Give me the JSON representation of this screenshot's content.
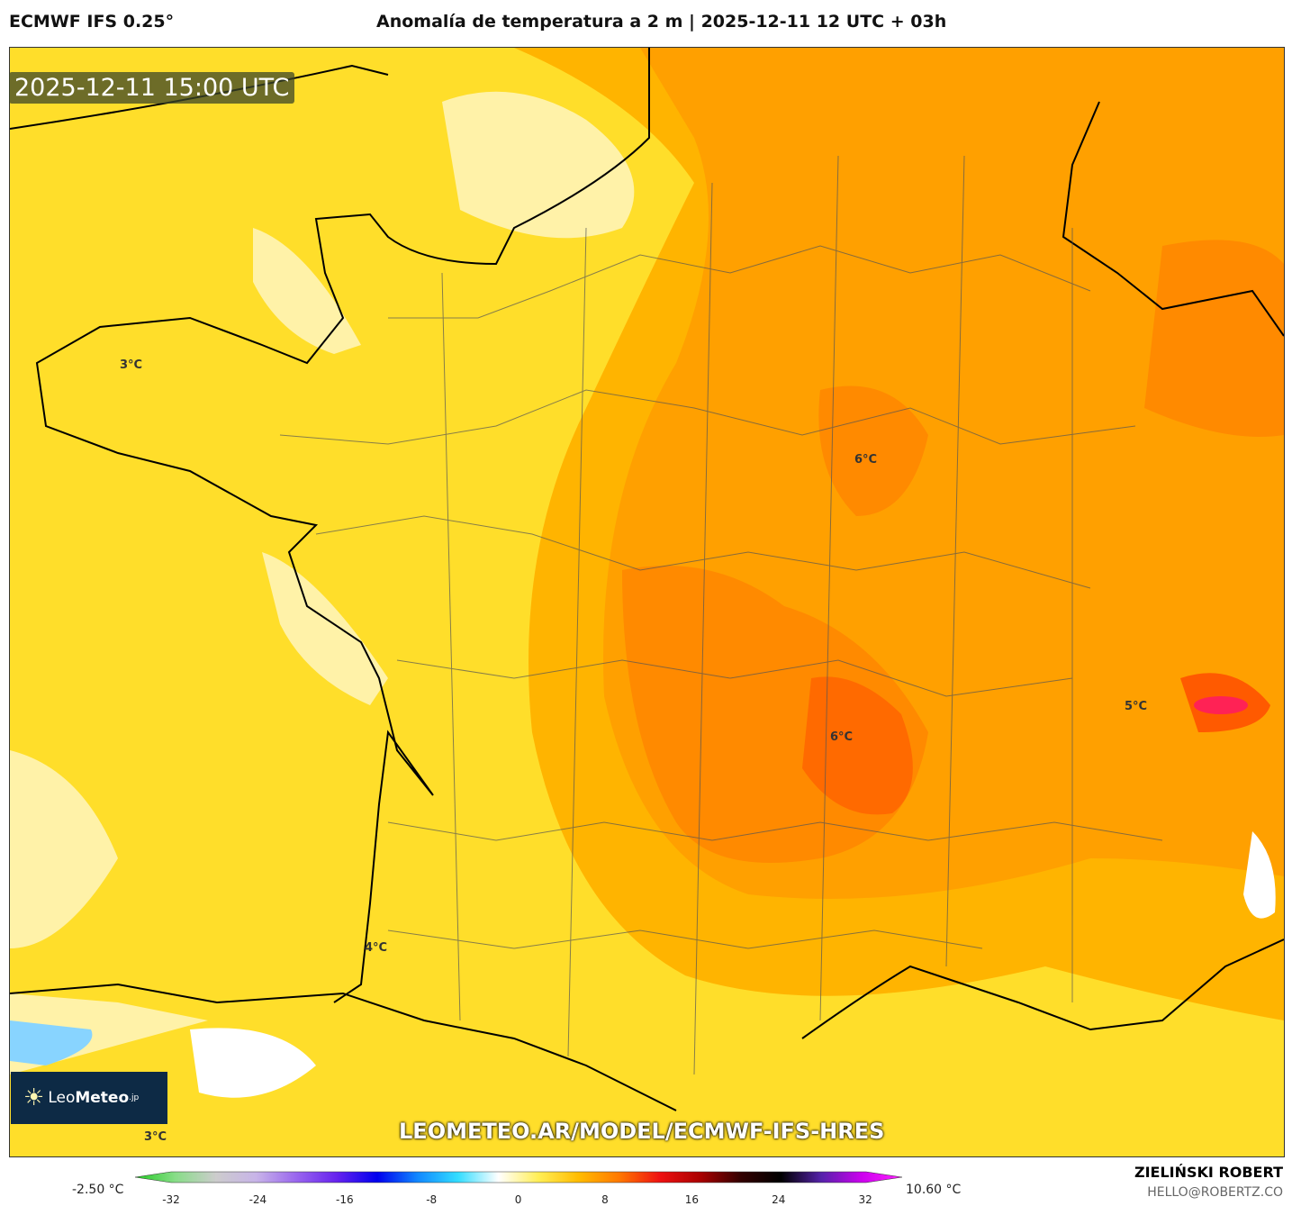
{
  "header": {
    "left": "ECMWF IFS 0.25°",
    "center": "Anomalía de temperatura a 2 m | 2025-12-11 12 UTC + 03h"
  },
  "map": {
    "timestamp": "2025-12-11 15:00 UTC",
    "url": "LEOMETEO.AR/MODEL/ECMWF-IFS-HRES",
    "labels": [
      "3°C",
      "6°C",
      "6°C",
      "5°C",
      "4°C",
      "3°C"
    ]
  },
  "logo": {
    "text_light": "Leo",
    "text_bold": "Meteo",
    "suffix": ".jp"
  },
  "colorbar": {
    "min_label": "-2.50 °C",
    "max_label": "10.60 °C",
    "ticks": [
      "-32",
      "-24",
      "-16",
      "-8",
      "0",
      "8",
      "16",
      "24",
      "32"
    ],
    "colors": [
      "#22cc22",
      "#88dd88",
      "#cccccc",
      "#c8b4e8",
      "#9966ee",
      "#6622ee",
      "#0000ee",
      "#1188ff",
      "#33ddff",
      "#ffffff",
      "#ffee55",
      "#ffbb00",
      "#ff7700",
      "#ee1111",
      "#aa0000",
      "#330000",
      "#000000",
      "#5522aa",
      "#cc00ee",
      "#ff22ff"
    ]
  },
  "credit": {
    "name": "ZIELIŃSKI ROBERT",
    "email": "HELLO@ROBERTZ.CO"
  }
}
